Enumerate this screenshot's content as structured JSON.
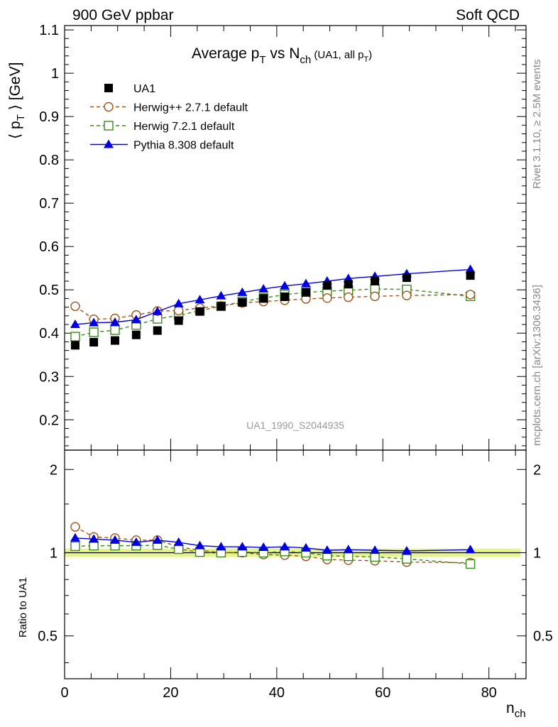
{
  "header": {
    "left": "900 GeV ppbar",
    "right": "Soft QCD"
  },
  "side_text": {
    "rivet": "Rivet 3.1.10, ≥ 2.5M events",
    "mcplots": "mcplots.cern.ch [arXiv:1306.3436]"
  },
  "title": {
    "main_prefix": "Average p",
    "main_sub": "T",
    "main_mid": " vs N",
    "main_sub2": "ch",
    "paren": " (UA1, all p",
    "paren_sub": "T",
    "paren_end": ")"
  },
  "axes": {
    "ylabel_main": "⟨ p",
    "ylabel_sub": "T",
    "ylabel_end": " ⟩ [GeV]",
    "ylabel_ratio": "Ratio to UA1",
    "xlabel": "n",
    "xlabel_sub": "ch"
  },
  "watermark": "UA1_1990_S2044935",
  "colors": {
    "ua1": "#000000",
    "herwigpp": "#a0521a",
    "herwig7": "#3a8a1a",
    "pythia": "#0000e0",
    "band": "#e6f58a"
  },
  "chart_data": {
    "type": "line",
    "x": [
      2,
      5.5,
      9.5,
      13.5,
      17.5,
      21.5,
      25.5,
      29.5,
      33.5,
      37.5,
      41.5,
      45.5,
      49.5,
      53.5,
      58.5,
      64.5,
      76.5
    ],
    "xlim": [
      0,
      87
    ],
    "ylim": [
      0.13,
      1.11
    ],
    "xticks": [
      0,
      20,
      40,
      60,
      80
    ],
    "yticks": [
      0.2,
      0.3,
      0.4,
      0.5,
      0.6,
      0.7,
      0.8,
      0.9,
      1,
      1.1
    ],
    "ratio_ylim": [
      0.35,
      2.35
    ],
    "ratio_yticks": [
      0.5,
      1,
      2
    ],
    "series": [
      {
        "name": "UA1",
        "marker": "square-filled",
        "line": "none",
        "values": [
          0.372,
          0.379,
          0.383,
          0.396,
          0.406,
          0.429,
          0.45,
          0.462,
          0.471,
          0.48,
          0.484,
          0.494,
          0.51,
          0.513,
          0.52,
          0.528,
          0.533
        ]
      },
      {
        "name": "Herwig++ 2.7.1 default",
        "marker": "circle-open",
        "line": "dashed",
        "values": [
          0.462,
          0.432,
          0.434,
          0.442,
          0.451,
          0.452,
          0.458,
          0.463,
          0.47,
          0.473,
          0.476,
          0.479,
          0.481,
          0.483,
          0.485,
          0.487,
          0.489
        ]
      },
      {
        "name": "Herwig 7.2.1 default",
        "marker": "square-open",
        "line": "dashed",
        "values": [
          0.392,
          0.402,
          0.407,
          0.419,
          0.433,
          0.441,
          0.452,
          0.462,
          0.473,
          0.481,
          0.489,
          0.494,
          0.497,
          0.499,
          0.502,
          0.501,
          0.485
        ]
      },
      {
        "name": "Pythia 8.308 default",
        "marker": "triangle-filled",
        "line": "solid",
        "values": [
          0.42,
          0.424,
          0.425,
          0.431,
          0.45,
          0.468,
          0.477,
          0.486,
          0.494,
          0.502,
          0.509,
          0.514,
          0.52,
          0.526,
          0.531,
          0.537,
          0.547
        ]
      }
    ],
    "ratio_series": [
      {
        "name": "Herwig++ 2.7.1 default",
        "values": [
          1.24,
          1.14,
          1.13,
          1.11,
          1.11,
          1.05,
          1.02,
          1.0,
          1.0,
          0.985,
          0.98,
          0.97,
          0.945,
          0.94,
          0.935,
          0.925,
          0.92
        ]
      },
      {
        "name": "Herwig 7.2.1 default",
        "values": [
          1.055,
          1.06,
          1.06,
          1.06,
          1.065,
          1.03,
          1.005,
          1.0,
          1.005,
          1.0,
          1.01,
          1.0,
          0.975,
          0.97,
          0.965,
          0.95,
          0.91
        ]
      },
      {
        "name": "Pythia 8.308 default",
        "values": [
          1.13,
          1.12,
          1.11,
          1.09,
          1.11,
          1.09,
          1.06,
          1.05,
          1.05,
          1.045,
          1.05,
          1.04,
          1.02,
          1.025,
          1.02,
          1.015,
          1.025
        ]
      }
    ]
  }
}
